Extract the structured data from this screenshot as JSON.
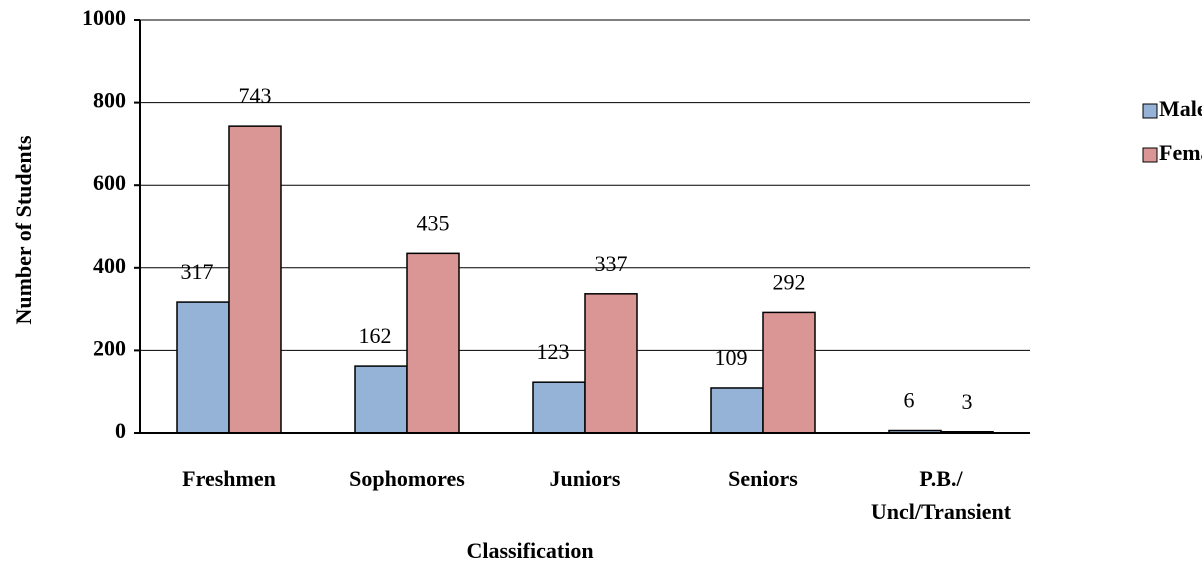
{
  "chart_data": {
    "type": "bar",
    "x_label": "Classification",
    "y_label": "Number of Students",
    "categories": [
      "Freshmen",
      "Sophomores",
      "Juniors",
      "Seniors",
      "P.B./ Uncl/Transient"
    ],
    "series": [
      {
        "name": "Male",
        "color": "#95b3d7",
        "values": [
          317,
          162,
          123,
          109,
          6
        ]
      },
      {
        "name": "Female",
        "color": "#d99694",
        "values": [
          743,
          435,
          337,
          292,
          3
        ]
      }
    ],
    "ylim": [
      0,
      1000
    ],
    "yticks": [
      0,
      200,
      400,
      600,
      800,
      1000
    ],
    "grid": true,
    "legend": "right"
  }
}
